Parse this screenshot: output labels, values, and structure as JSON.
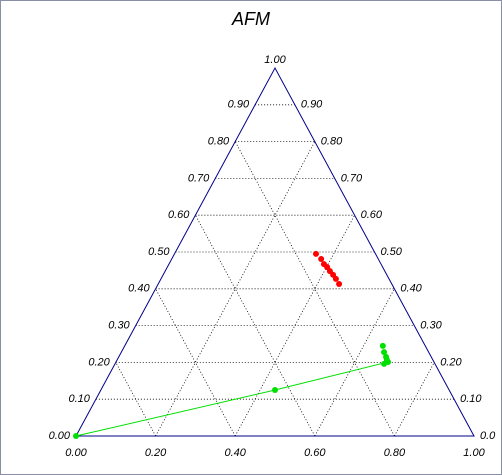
{
  "chart_data": {
    "type": "ternary",
    "title": "AFM",
    "bottom_ticks": [
      {
        "value": 0,
        "label": "0.00"
      },
      {
        "value": 0.2,
        "label": "0.20"
      },
      {
        "value": 0.4,
        "label": "0.40"
      },
      {
        "value": 0.6,
        "label": "0.60"
      },
      {
        "value": 0.8,
        "label": "0.80"
      },
      {
        "value": 1,
        "label": "1.00"
      }
    ],
    "left_ticks": [
      {
        "value": 0,
        "label": "0.00"
      },
      {
        "value": 0.1,
        "label": "0.10"
      },
      {
        "value": 0.2,
        "label": "0.20"
      },
      {
        "value": 0.3,
        "label": "0.30"
      },
      {
        "value": 0.4,
        "label": "0.40"
      },
      {
        "value": 0.5,
        "label": "0.50"
      },
      {
        "value": 0.6,
        "label": "0.60"
      },
      {
        "value": 0.7,
        "label": "0.70"
      },
      {
        "value": 0.8,
        "label": "0.80"
      },
      {
        "value": 0.9,
        "label": "0.90"
      },
      {
        "value": 1,
        "label": "1.00"
      }
    ],
    "right_ticks": [
      {
        "value": 0.9,
        "label": "0.90"
      },
      {
        "value": 0.8,
        "label": "0.80"
      },
      {
        "value": 0.7,
        "label": "0.70"
      },
      {
        "value": 0.6,
        "label": "0.60"
      },
      {
        "value": 0.5,
        "label": "0.50"
      },
      {
        "value": 0.4,
        "label": "0.40"
      },
      {
        "value": 0.3,
        "label": "0.30"
      },
      {
        "value": 0.2,
        "label": "0.20"
      },
      {
        "value": 0.1,
        "label": "0.10"
      },
      {
        "value": 0,
        "label": "0.0"
      }
    ],
    "grid": true,
    "axis_color": "#00008b",
    "series": [
      {
        "color": "#ff0000",
        "line": false,
        "x": [
          0.603,
          0.616,
          0.623,
          0.631,
          0.638,
          0.646,
          0.653,
          0.661
        ],
        "y": [
          0.495,
          0.481,
          0.467,
          0.459,
          0.448,
          0.438,
          0.427,
          0.413
        ]
      },
      {
        "color": "#00e000",
        "line": true,
        "x": [
          0,
          0.5,
          0.784
        ],
        "y": [
          0,
          0.125,
          0.201
        ]
      },
      {
        "color": "#00e000",
        "line": false,
        "x": [
          0.771,
          0.774,
          0.779,
          0.781,
          0.774
        ],
        "y": [
          0.245,
          0.228,
          0.215,
          0.207,
          0.196
        ]
      }
    ]
  }
}
